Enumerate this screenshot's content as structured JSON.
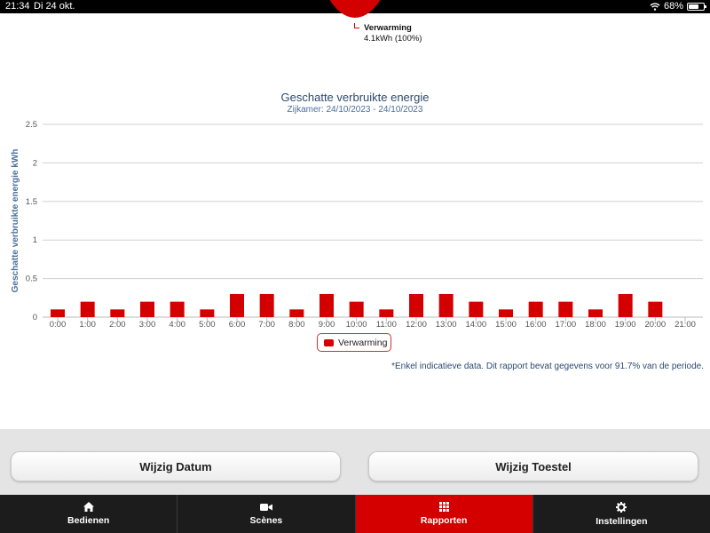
{
  "status_bar": {
    "time": "21:34",
    "date": "Di 24 okt.",
    "battery": "68%",
    "battery_level": 0.68
  },
  "pie": {
    "label": "Verwarming",
    "value": "4.1kWh (100%)",
    "color": "#d40000"
  },
  "chart_data": {
    "type": "bar",
    "title": "Geschatte verbruikte energie",
    "subtitle": "Zijkamer: 24/10/2023 - 24/10/2023",
    "ylabel": "Geschatte verbruikte energie kWh",
    "xlabel": "",
    "ylim": [
      0,
      2.5
    ],
    "yticks": [
      "0",
      "0.5",
      "1",
      "1.5",
      "2",
      "2.5"
    ],
    "categories": [
      "0:00",
      "1:00",
      "2:00",
      "3:00",
      "4:00",
      "5:00",
      "6:00",
      "7:00",
      "8:00",
      "9:00",
      "10:00",
      "11:00",
      "12:00",
      "13:00",
      "14:00",
      "15:00",
      "16:00",
      "17:00",
      "18:00",
      "19:00",
      "20:00",
      "21:00"
    ],
    "series": [
      {
        "name": "Verwarming",
        "color": "#d40000",
        "values": [
          0.1,
          0.2,
          0.1,
          0.2,
          0.2,
          0.1,
          0.3,
          0.3,
          0.1,
          0.3,
          0.2,
          0.1,
          0.3,
          0.3,
          0.2,
          0.1,
          0.2,
          0.2,
          0.1,
          0.3,
          0.2,
          0
        ]
      }
    ],
    "legend_position": "bottom-center"
  },
  "footnote": "*Enkel indicatieve data. Dit rapport bevat gegevens voor 91.7% van de periode.",
  "buttons": {
    "change_date": "Wijzig Datum",
    "change_device": "Wijzig Toestel"
  },
  "tabs": [
    {
      "label": "Bedienen",
      "icon": "home-icon"
    },
    {
      "label": "Scènes",
      "icon": "camera-icon"
    },
    {
      "label": "Rapporten",
      "icon": "grid-icon",
      "active": true
    },
    {
      "label": "Instellingen",
      "icon": "gear-icon"
    }
  ],
  "colors": {
    "accent": "#d40000",
    "title": "#2c4a6e",
    "tabbar": "#1c1c1c"
  }
}
